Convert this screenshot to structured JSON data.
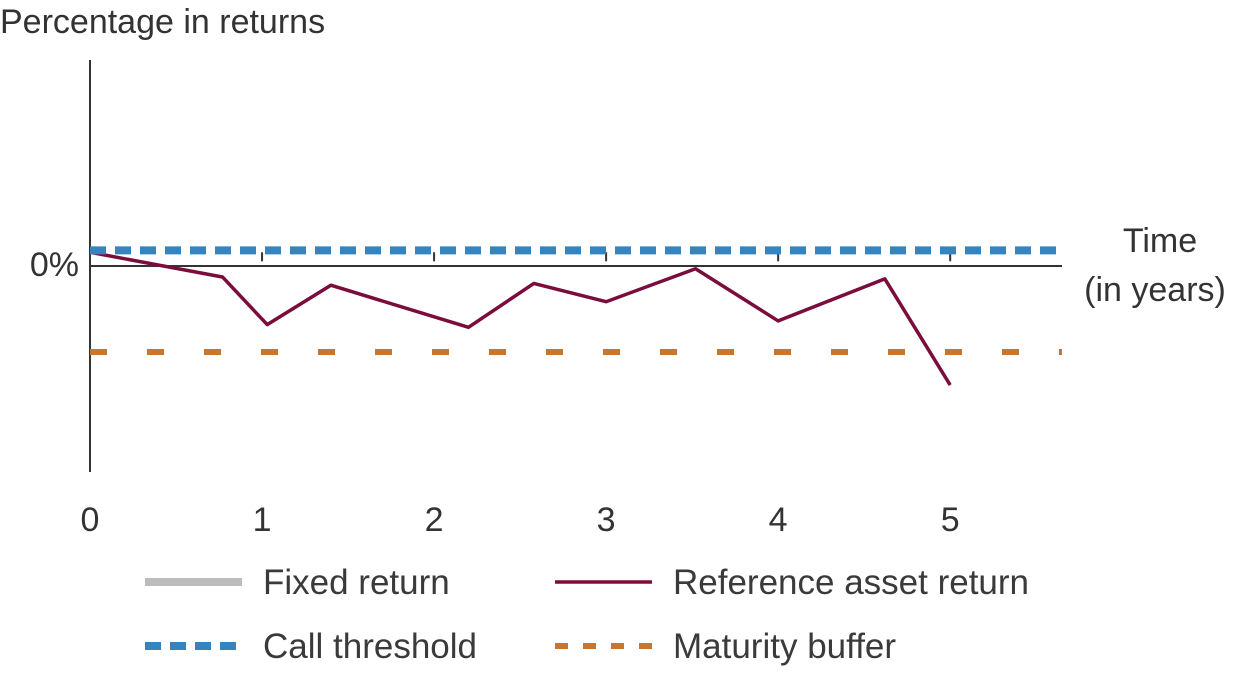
{
  "chart_data": {
    "type": "line",
    "title": "",
    "ylabel": "Percentage in returns",
    "xlabel": "Time (in years)",
    "xlabel_lines": [
      "Time",
      "(in years)"
    ],
    "y_tick_label": "0%",
    "xlim": [
      0,
      5.65
    ],
    "ylim": [
      -24,
      21
    ],
    "x_ticks": [
      0,
      1,
      2,
      3,
      4,
      5
    ],
    "x_tick_labels": [
      "0",
      "1",
      "2",
      "3",
      "4",
      "5"
    ],
    "grid": false,
    "legend_position": "bottom",
    "series": [
      {
        "name": "Fixed return",
        "style": "solid-thick",
        "color": "#bcbcbc",
        "points": []
      },
      {
        "name": "Reference asset return",
        "style": "solid",
        "color": "#7b0d3c",
        "points": [
          [
            0,
            0
          ],
          [
            0.77,
            -2.7
          ],
          [
            1.03,
            -7.9
          ],
          [
            1.4,
            -3.6
          ],
          [
            2.2,
            -8.2
          ],
          [
            2.58,
            -3.4
          ],
          [
            3.0,
            -5.4
          ],
          [
            3.52,
            -1.8
          ],
          [
            4.0,
            -7.5
          ],
          [
            4.62,
            -2.9
          ],
          [
            5.0,
            -14.5
          ]
        ]
      },
      {
        "name": "Call threshold",
        "style": "dashed",
        "color": "#3584bd",
        "points": [
          [
            0,
            0.2
          ],
          [
            5.65,
            0.2
          ]
        ]
      },
      {
        "name": "Maturity buffer",
        "style": "dashed",
        "color": "#c8752e",
        "points": [
          [
            0,
            -10.9
          ],
          [
            5.65,
            -10.9
          ]
        ]
      }
    ]
  }
}
